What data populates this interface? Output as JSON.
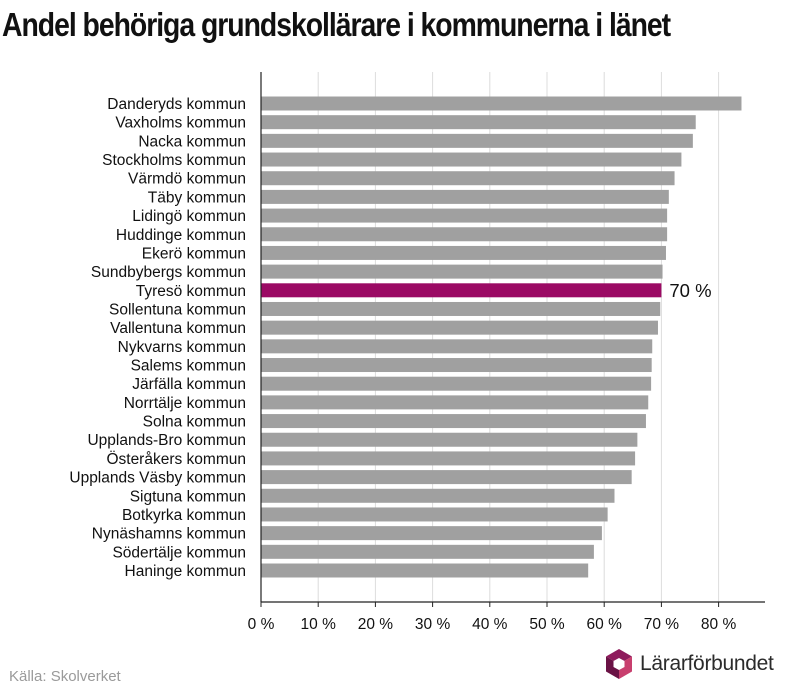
{
  "title": "Andel behöriga grundskollärare i kommunerna i länet",
  "source": "Källa: Skolverket",
  "brand": "Lärarförbundet",
  "colors": {
    "bar": "#a0a0a0",
    "highlight": "#9b0a64",
    "grid": "#dcdcdc",
    "axis": "#222222",
    "logo_a": "#8e1a5c",
    "logo_b": "#c83f6e",
    "logo_c": "#6a1245"
  },
  "chart_data": {
    "type": "bar",
    "orientation": "horizontal",
    "categories": [
      "Danderyds kommun",
      "Vaxholms kommun",
      "Nacka kommun",
      "Stockholms kommun",
      "Värmdö kommun",
      "Täby kommun",
      "Lidingö kommun",
      "Huddinge kommun",
      "Ekerö kommun",
      "Sundbybergs kommun",
      "Tyresö kommun",
      "Sollentuna kommun",
      "Vallentuna kommun",
      "Nykvarns kommun",
      "Salems kommun",
      "Järfälla kommun",
      "Norrtälje kommun",
      "Solna kommun",
      "Upplands-Bro kommun",
      "Österåkers kommun",
      "Upplands Väsby kommun",
      "Sigtuna kommun",
      "Botkyrka kommun",
      "Nynäshamns kommun",
      "Södertälje kommun",
      "Haninge kommun"
    ],
    "values": [
      84,
      76,
      75.5,
      73.5,
      72.3,
      71.3,
      71,
      71,
      70.8,
      70.2,
      70,
      69.8,
      69.4,
      68.4,
      68.3,
      68.2,
      67.7,
      67.3,
      65.8,
      65.4,
      64.8,
      61.8,
      60.6,
      59.6,
      58.2,
      57.2
    ],
    "highlight": "Tyresö kommun",
    "highlight_label": "70 %",
    "xticks": [
      "0 %",
      "10 %",
      "20 %",
      "30 %",
      "40 %",
      "50 %",
      "60 %",
      "70 %",
      "80 %"
    ],
    "xlim": [
      0,
      88
    ],
    "grid": true,
    "xlabel": "",
    "ylabel": ""
  }
}
